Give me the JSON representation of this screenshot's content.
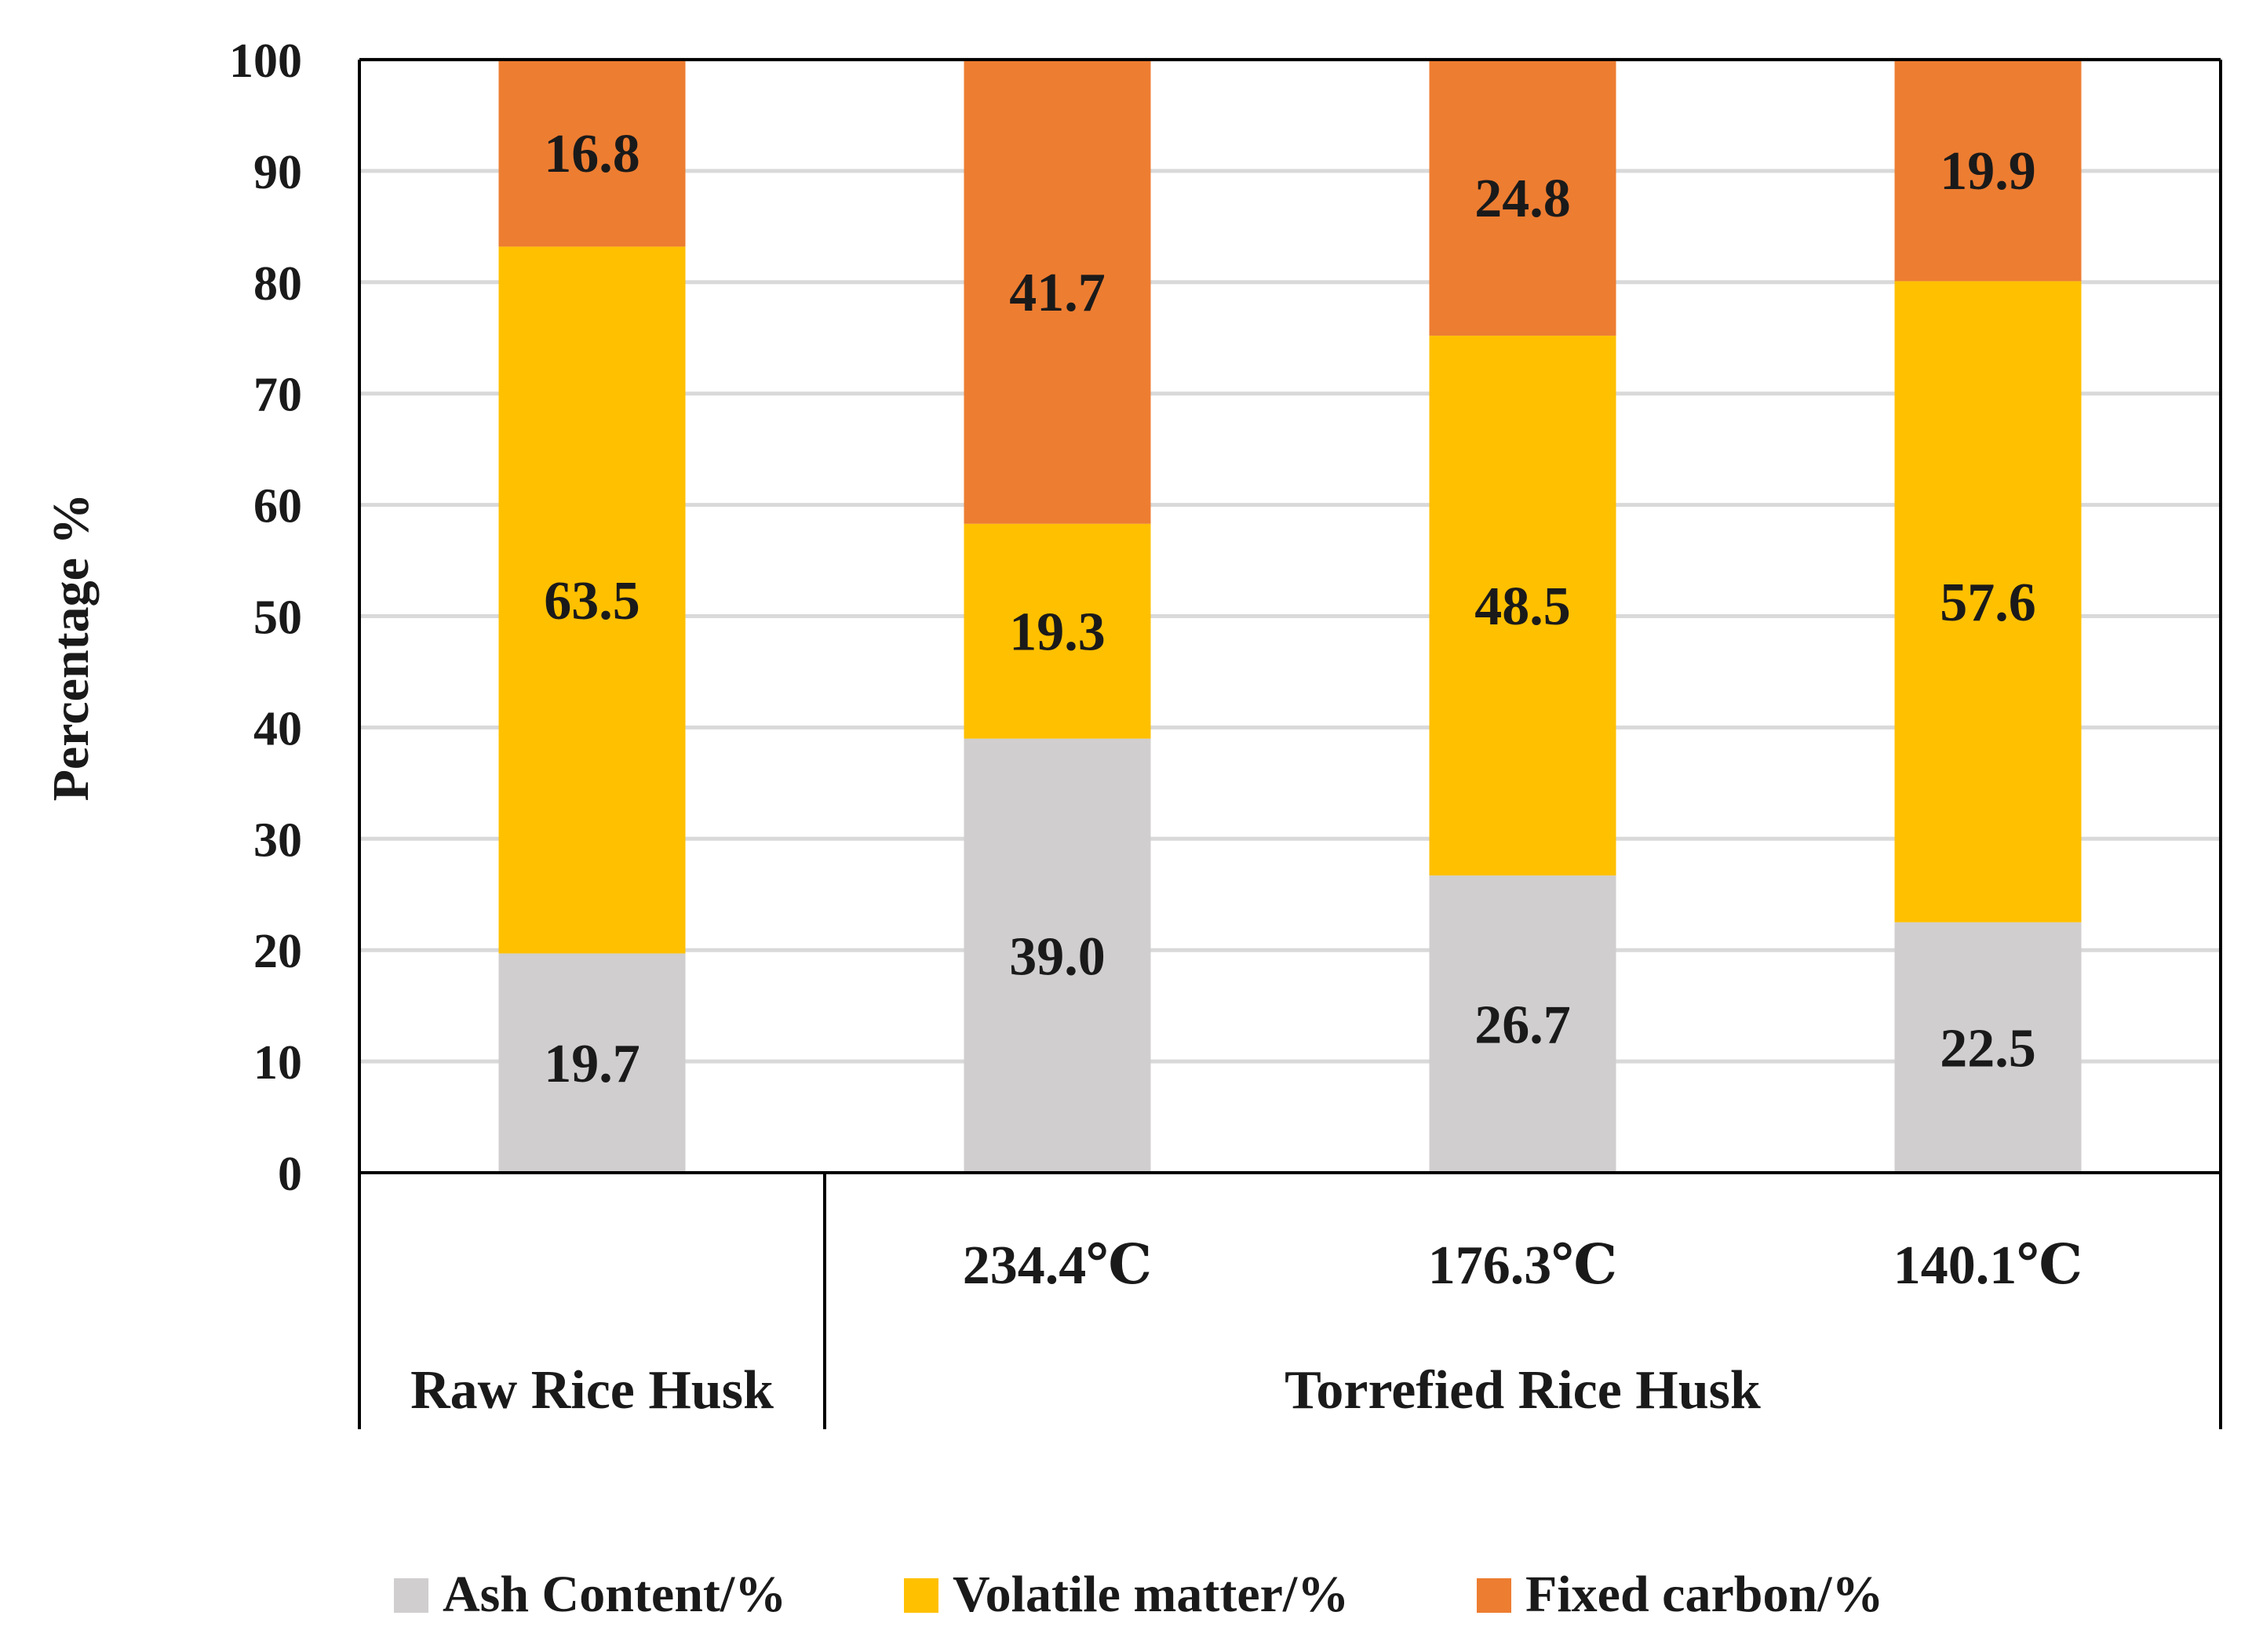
{
  "chart_data": {
    "type": "bar",
    "stacked": true,
    "ylabel": "Percentage %",
    "ylim": [
      0,
      100
    ],
    "yticks": [
      0,
      10,
      20,
      30,
      40,
      50,
      60,
      70,
      80,
      90,
      100
    ],
    "grid": true,
    "categories": [
      "",
      "234.4℃",
      "176.3℃",
      "140.1℃"
    ],
    "groups": [
      {
        "label": "Raw Rice Husk",
        "span": [
          0,
          0
        ]
      },
      {
        "label": "Torrefied Rice Husk",
        "span": [
          1,
          3
        ]
      }
    ],
    "series": [
      {
        "name": "Ash Content/%",
        "color": "#d0cece",
        "values": [
          19.7,
          39.0,
          26.7,
          22.5
        ],
        "labels": [
          "19.7",
          "39.0",
          "26.7",
          "22.5"
        ]
      },
      {
        "name": "Volatile matter/%",
        "color": "#ffc000",
        "values": [
          63.5,
          19.3,
          48.5,
          57.6
        ],
        "labels": [
          "63.5",
          "19.3",
          "48.5",
          "57.6"
        ]
      },
      {
        "name": "Fixed carbon/%",
        "color": "#ed7d31",
        "values": [
          16.8,
          41.7,
          24.8,
          19.9
        ],
        "labels": [
          "16.8",
          "41.7",
          "24.8",
          "19.9"
        ]
      }
    ],
    "legend_position": "bottom"
  }
}
